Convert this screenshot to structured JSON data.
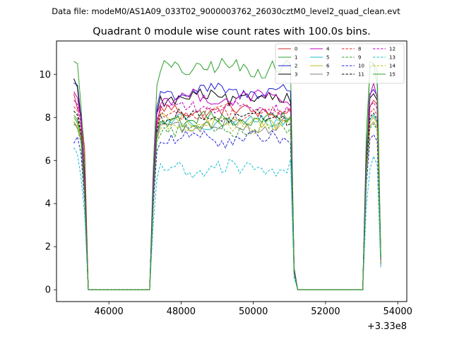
{
  "suptitle": "Data file: modeM0/AS1A09_033T02_9000003762_26030cztM0_level2_quad_clean.evt",
  "chart_data": {
    "type": "line",
    "title": "Quadrant 0 module wise count rates with 100.0s bins.",
    "xlabel": "",
    "ylabel": "",
    "x_offset_label": "+3.33e8",
    "xlim": [
      44550,
      54250
    ],
    "ylim": [
      -0.55,
      11.55
    ],
    "x_ticks": [
      46000,
      48000,
      50000,
      52000,
      54000
    ],
    "x_tick_labels": [
      "46000",
      "48000",
      "50000",
      "52000",
      "54000"
    ],
    "y_ticks": [
      0,
      2,
      4,
      6,
      8,
      10
    ],
    "y_tick_labels": [
      "0",
      "2",
      "4",
      "6",
      "8",
      "10"
    ],
    "legend_location": "upper-right",
    "legend_ncol": 4,
    "segments": [
      {
        "start": 45030,
        "end": 45330
      },
      {
        "start": 47230,
        "end": 51030
      },
      {
        "start": 53130,
        "end": 53630
      }
    ],
    "series": [
      {
        "name": "0",
        "color": "#d62728",
        "dash": "solid",
        "mean": 8.3,
        "first": [
          9.1,
          8.4,
          8.2,
          6.5
        ],
        "last": [
          8.5,
          8.8,
          8.6,
          1.3
        ]
      },
      {
        "name": "1",
        "color": "#2ca02c",
        "dash": "solid",
        "mean": 10.3,
        "first": [
          10.6,
          10.5,
          8.5,
          5.8
        ],
        "last": [
          10.3,
          10.5,
          10.2,
          1.6
        ]
      },
      {
        "name": "2",
        "color": "#1f1fd6",
        "dash": "solid",
        "mean": 9.2,
        "first": [
          9.6,
          9.5,
          8.0,
          5.0
        ],
        "last": [
          9.1,
          9.3,
          9.0,
          1.5
        ]
      },
      {
        "name": "3",
        "color": "#000000",
        "dash": "solid",
        "mean": 8.9,
        "first": [
          9.8,
          9.4,
          7.8,
          5.2
        ],
        "last": [
          8.9,
          9.1,
          8.8,
          1.4
        ]
      },
      {
        "name": "4",
        "color": "#c000c0",
        "dash": "solid",
        "mean": 8.9,
        "first": [
          9.2,
          8.9,
          7.9,
          5.0
        ],
        "last": [
          9.0,
          9.6,
          8.9,
          1.4
        ]
      },
      {
        "name": "5",
        "color": "#17becf",
        "dash": "solid",
        "mean": 7.8,
        "first": [
          8.0,
          7.8,
          7.1,
          4.5
        ],
        "last": [
          7.9,
          8.1,
          7.8,
          1.2
        ]
      },
      {
        "name": "6",
        "color": "#bcbd22",
        "dash": "solid",
        "mean": 7.8,
        "first": [
          8.0,
          7.7,
          7.0,
          4.4
        ],
        "last": [
          7.8,
          8.0,
          7.7,
          1.2
        ]
      },
      {
        "name": "7",
        "color": "#7f7f7f",
        "dash": "solid",
        "mean": 7.6,
        "first": [
          7.8,
          7.5,
          6.9,
          4.3
        ],
        "last": [
          7.6,
          7.8,
          7.5,
          1.2
        ]
      },
      {
        "name": "8",
        "color": "#d62728",
        "dash": "dashed",
        "mean": 8.2,
        "first": [
          8.5,
          8.3,
          7.4,
          4.7
        ],
        "last": [
          8.2,
          8.4,
          8.1,
          1.3
        ]
      },
      {
        "name": "9",
        "color": "#2ca02c",
        "dash": "dashed",
        "mean": 7.5,
        "first": [
          7.7,
          7.5,
          6.8,
          4.2
        ],
        "last": [
          7.5,
          7.7,
          7.4,
          1.2
        ]
      },
      {
        "name": "10",
        "color": "#1f1fd6",
        "dash": "dashed",
        "mean": 7.0,
        "first": [
          6.8,
          7.1,
          6.3,
          4.0
        ],
        "last": [
          7.0,
          7.2,
          6.9,
          1.1
        ]
      },
      {
        "name": "11",
        "color": "#000000",
        "dash": "dashed",
        "mean": 8.0,
        "first": [
          8.3,
          8.1,
          7.2,
          4.6
        ],
        "last": [
          8.0,
          8.2,
          7.9,
          1.3
        ]
      },
      {
        "name": "12",
        "color": "#c000c0",
        "dash": "dashed",
        "mean": 8.5,
        "first": [
          8.8,
          8.6,
          7.6,
          4.8
        ],
        "last": [
          8.5,
          8.7,
          8.4,
          1.3
        ]
      },
      {
        "name": "13",
        "color": "#17becf",
        "dash": "dashed",
        "mean": 5.6,
        "first": [
          6.6,
          6.3,
          5.2,
          3.5
        ],
        "last": [
          5.6,
          6.2,
          5.8,
          1.0
        ]
      },
      {
        "name": "14",
        "color": "#bcbd22",
        "dash": "dashed",
        "mean": 7.6,
        "first": [
          7.8,
          7.6,
          6.9,
          4.3
        ],
        "last": [
          7.6,
          7.8,
          7.5,
          1.2
        ]
      },
      {
        "name": "15",
        "color": "#2ca02c",
        "dash": "solid",
        "mean": 7.9,
        "first": [
          8.1,
          7.9,
          7.1,
          4.5
        ],
        "last": [
          10.6,
          10.5,
          9.5,
          1.5
        ]
      }
    ]
  }
}
